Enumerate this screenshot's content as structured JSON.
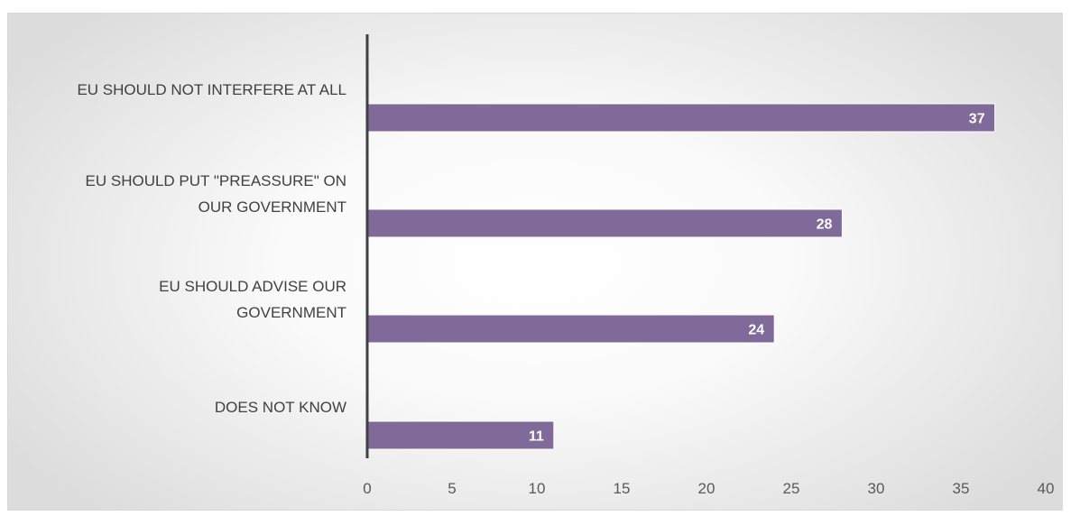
{
  "chart_data": {
    "type": "bar",
    "orientation": "horizontal",
    "categories": [
      [
        "EU SHOULD NOT INTERFERE AT ALL"
      ],
      [
        "EU SHOULD PUT \"PREASSURE\" ON",
        "OUR GOVERNMENT"
      ],
      [
        "EU SHOULD ADVISE OUR",
        "GOVERNMENT"
      ],
      [
        "DOES NOT KNOW"
      ]
    ],
    "values": [
      37,
      28,
      24,
      11
    ],
    "data_labels": [
      "37",
      "28",
      "24",
      "11"
    ],
    "xlim": [
      0,
      40
    ],
    "x_ticks": [
      "0",
      "5",
      "10",
      "15",
      "20",
      "25",
      "30",
      "35",
      "40"
    ],
    "title": "",
    "xlabel": "",
    "ylabel": "",
    "grid": false,
    "legend": "none",
    "bar_color": "#7f6a99",
    "bar_border_color": "#ffffff",
    "axis_color": "#404040"
  }
}
